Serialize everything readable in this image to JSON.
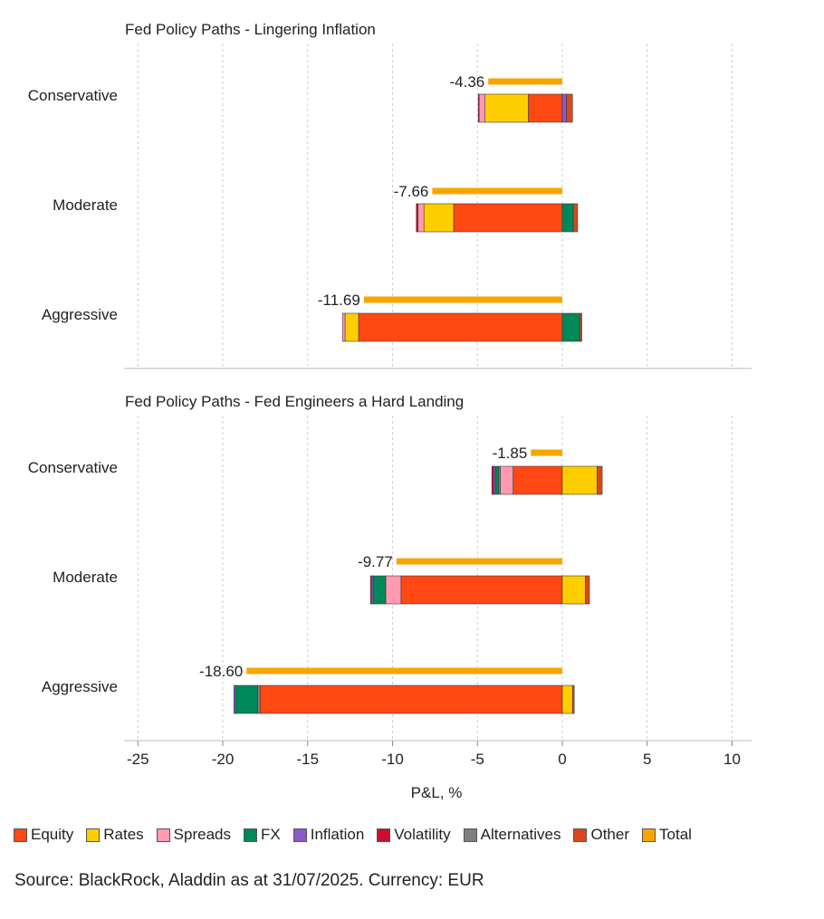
{
  "chart_data": {
    "type": "bar",
    "orientation": "horizontal",
    "stacked": true,
    "xlabel": "P&L, %",
    "xlim": [
      -26,
      11.5
    ],
    "xticks": [
      -25,
      -20,
      -15,
      -10,
      -5,
      0,
      5,
      10
    ],
    "xtick_labels": [
      "-25",
      "-20",
      "-15",
      "-10",
      "-5",
      "0",
      "5",
      "10"
    ],
    "grid": "vertical dashed",
    "legend_position": "bottom",
    "source": "Source: BlackRock, Aladdin as at 31/07/2025. Currency: EUR",
    "components": [
      {
        "name": "Equity",
        "color": "#ff4814"
      },
      {
        "name": "Rates",
        "color": "#ffce00"
      },
      {
        "name": "Spreads",
        "color": "#ff9ab0"
      },
      {
        "name": "FX",
        "color": "#00875a"
      },
      {
        "name": "Inflation",
        "color": "#8b5cc8"
      },
      {
        "name": "Volatility",
        "color": "#c8102e"
      },
      {
        "name": "Alternatives",
        "color": "#7f7f7f"
      },
      {
        "name": "Other",
        "color": "#d9481c"
      },
      {
        "name": "Total",
        "color": "#f7a600"
      }
    ],
    "panels": [
      {
        "title": "Fed Policy Paths - Lingering Inflation",
        "categories": [
          "Conservative",
          "Moderate",
          "Aggressive"
        ],
        "bars": [
          {
            "total": -4.36,
            "total_label": "-4.36",
            "negative": [
              {
                "c": "Equity",
                "v": -2.0
              },
              {
                "c": "Rates",
                "v": -2.55
              },
              {
                "c": "Spreads",
                "v": -0.35
              },
              {
                "c": "Volatility",
                "v": -0.05
              }
            ],
            "positive": [
              {
                "c": "Inflation",
                "v": 0.25
              },
              {
                "c": "Other",
                "v": 0.35
              }
            ]
          },
          {
            "total": -7.66,
            "total_label": "-7.66",
            "negative": [
              {
                "c": "Equity",
                "v": -6.4
              },
              {
                "c": "Rates",
                "v": -1.75
              },
              {
                "c": "Spreads",
                "v": -0.35
              },
              {
                "c": "Volatility",
                "v": -0.1
              }
            ],
            "positive": [
              {
                "c": "FX",
                "v": 0.65
              },
              {
                "c": "Other",
                "v": 0.25
              }
            ]
          },
          {
            "total": -11.69,
            "total_label": "-11.69",
            "negative": [
              {
                "c": "Equity",
                "v": -12.0
              },
              {
                "c": "Rates",
                "v": -0.8
              },
              {
                "c": "Spreads",
                "v": -0.15
              }
            ],
            "positive": [
              {
                "c": "FX",
                "v": 1.05
              },
              {
                "c": "Other",
                "v": 0.1
              }
            ]
          }
        ]
      },
      {
        "title": "Fed Policy Paths - Fed Engineers a Hard Landing",
        "categories": [
          "Conservative",
          "Moderate",
          "Aggressive"
        ],
        "bars": [
          {
            "total": -1.85,
            "total_label": "-1.85",
            "negative": [
              {
                "c": "Equity",
                "v": -2.9
              },
              {
                "c": "Spreads",
                "v": -0.75
              },
              {
                "c": "Alternatives",
                "v": -0.1
              },
              {
                "c": "FX",
                "v": -0.2
              },
              {
                "c": "Inflation",
                "v": -0.1
              },
              {
                "c": "Volatility",
                "v": -0.1
              }
            ],
            "positive": [
              {
                "c": "Rates",
                "v": 2.05
              },
              {
                "c": "Other",
                "v": 0.3
              }
            ]
          },
          {
            "total": -9.77,
            "total_label": "-9.77",
            "negative": [
              {
                "c": "Equity",
                "v": -9.5
              },
              {
                "c": "Spreads",
                "v": -0.9
              },
              {
                "c": "FX",
                "v": -0.75
              },
              {
                "c": "Inflation",
                "v": -0.1
              },
              {
                "c": "Volatility",
                "v": -0.05
              }
            ],
            "positive": [
              {
                "c": "Rates",
                "v": 1.35
              },
              {
                "c": "Other",
                "v": 0.25
              }
            ]
          },
          {
            "total": -18.6,
            "total_label": "-18.60",
            "negative": [
              {
                "c": "Equity",
                "v": -17.8
              },
              {
                "c": "Alternatives",
                "v": -0.15
              },
              {
                "c": "FX",
                "v": -1.3
              },
              {
                "c": "Inflation",
                "v": -0.1
              }
            ],
            "positive": [
              {
                "c": "Rates",
                "v": 0.6
              },
              {
                "c": "Other",
                "v": 0.1
              }
            ]
          }
        ]
      }
    ]
  }
}
